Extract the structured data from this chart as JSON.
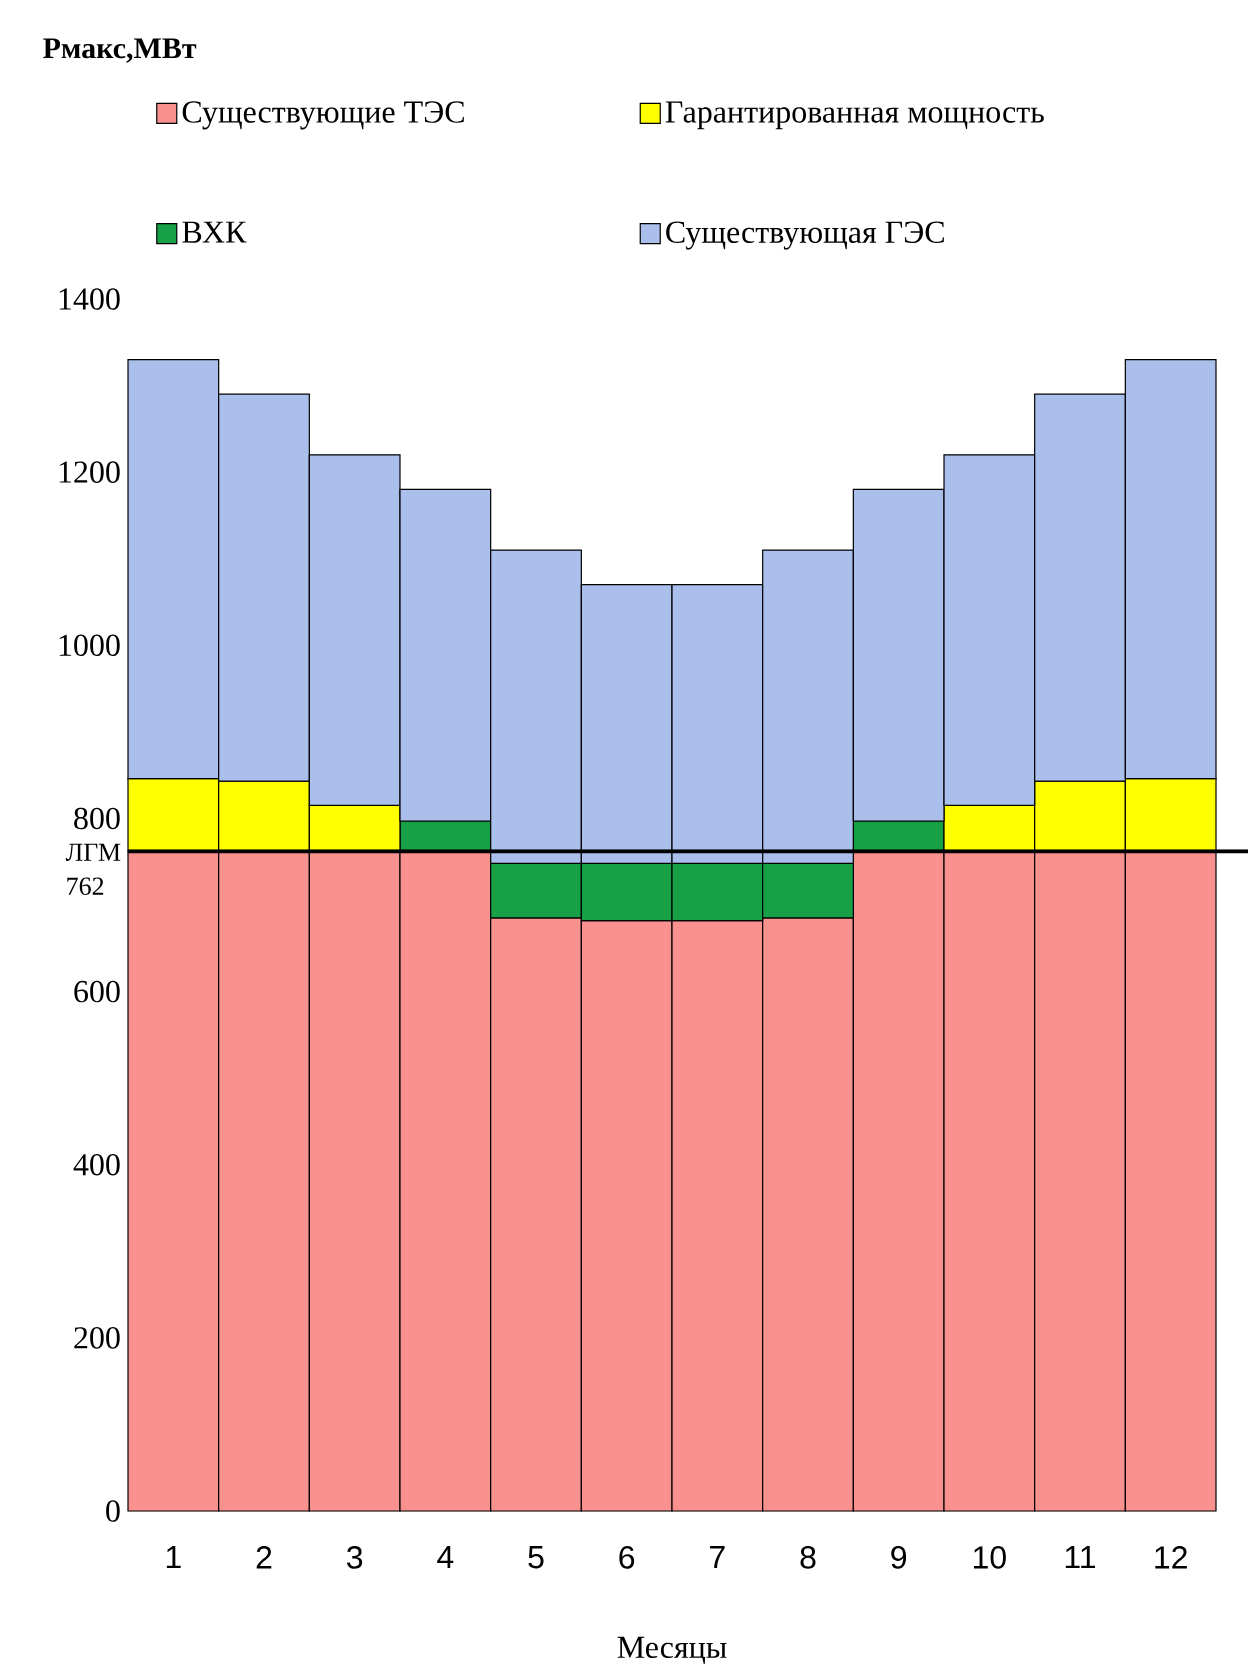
{
  "chart_data": {
    "type": "bar",
    "stacked": true,
    "annotations": [
      "Рмакс,МВт"
    ],
    "xlabel": "Месяцы",
    "categories": [
      "1",
      "2",
      "3",
      "4",
      "5",
      "6",
      "7",
      "8",
      "9",
      "10",
      "11",
      "12"
    ],
    "series": [
      {
        "name": "Существующие ТЭС",
        "color": "#f9918f",
        "values": [
          762,
          762,
          762,
          762,
          685,
          682,
          682,
          685,
          762,
          762,
          762,
          762
        ]
      },
      {
        "name": "ВХК",
        "color": "#17a046",
        "values": [
          null,
          null,
          null,
          35,
          63,
          66,
          66,
          63,
          35,
          null,
          null,
          null
        ]
      },
      {
        "name": "Гарантированная мощность",
        "color": "#ffff00",
        "values": [
          84,
          81,
          53,
          null,
          null,
          null,
          null,
          null,
          null,
          53,
          81,
          84
        ]
      },
      {
        "name": "Существующая ГЭС",
        "color": "#aabfeb",
        "values": [
          484,
          447,
          405,
          383,
          362,
          322,
          322,
          362,
          383,
          405,
          447,
          484
        ]
      }
    ],
    "ylim": [
      0,
      1400
    ],
    "yticks": [
      0,
      200,
      400,
      600,
      800,
      1000,
      1200,
      1400
    ],
    "ref_lines": [
      {
        "axis": "y",
        "value": 762,
        "label": "ЛГМ 762",
        "color": "#000000"
      }
    ],
    "legend": "top"
  }
}
